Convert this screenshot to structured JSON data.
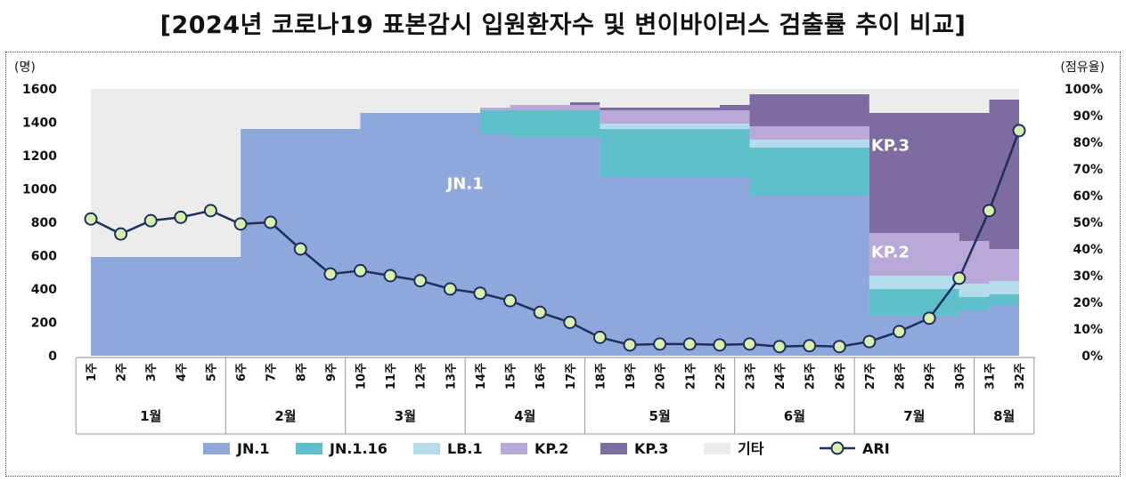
{
  "title": "[2024년 코로나19 표본감시 입원환자수 및 변이바이러스 검출률 추이 비교]",
  "chart_data": {
    "type": "area",
    "left_axis_unit": "(명)",
    "right_axis_unit": "(점유율)",
    "y_left": {
      "min": 0,
      "max": 1600,
      "ticks": [
        "0",
        "200",
        "400",
        "600",
        "800",
        "1000",
        "1200",
        "1400",
        "1600"
      ]
    },
    "y_right": {
      "min": 0,
      "max": 100,
      "ticks": [
        "0%",
        "10%",
        "20%",
        "30%",
        "40%",
        "50%",
        "60%",
        "70%",
        "80%",
        "90%",
        "100%"
      ]
    },
    "categories": [
      "1주",
      "2주",
      "3주",
      "4주",
      "5주",
      "6주",
      "7주",
      "8주",
      "9주",
      "10주",
      "11주",
      "12주",
      "13주",
      "14주",
      "15주",
      "16주",
      "17주",
      "18주",
      "19주",
      "20주",
      "21주",
      "22주",
      "23주",
      "24주",
      "25주",
      "26주",
      "27주",
      "28주",
      "29주",
      "30주",
      "31주",
      "32주"
    ],
    "months": [
      {
        "label": "1월",
        "from": 1,
        "to": 5
      },
      {
        "label": "2월",
        "from": 6,
        "to": 9
      },
      {
        "label": "3월",
        "from": 10,
        "to": 13
      },
      {
        "label": "4월",
        "from": 14,
        "to": 17
      },
      {
        "label": "5월",
        "from": 18,
        "to": 22
      },
      {
        "label": "6월",
        "from": 23,
        "to": 26
      },
      {
        "label": "7월",
        "from": 27,
        "to": 30
      },
      {
        "label": "8월",
        "from": 31,
        "to": 32
      }
    ],
    "stack_series": [
      {
        "name": "JN.1",
        "color": "#8fa8dc",
        "values": [
          37,
          37,
          37,
          37,
          37,
          85,
          85,
          85,
          85,
          91,
          91,
          91,
          91,
          83,
          82,
          82,
          82,
          67,
          67,
          67,
          67,
          67,
          60,
          60,
          60,
          60,
          15,
          15,
          15,
          17,
          19,
          19
        ]
      },
      {
        "name": "JN.1.16",
        "color": "#5fc0cc",
        "values": [
          0,
          0,
          0,
          0,
          0,
          0,
          0,
          0,
          0,
          0,
          0,
          0,
          0,
          9,
          10,
          10,
          10,
          18,
          18,
          18,
          18,
          18,
          18,
          18,
          18,
          18,
          10,
          10,
          10,
          5,
          4,
          4
        ]
      },
      {
        "name": "LB.1",
        "color": "#b4dcea",
        "values": [
          0,
          0,
          0,
          0,
          0,
          0,
          0,
          0,
          0,
          0,
          0,
          0,
          0,
          0,
          0,
          0,
          0,
          2,
          2,
          2,
          2,
          2,
          3,
          3,
          3,
          3,
          5,
          5,
          5,
          5,
          5,
          5
        ]
      },
      {
        "name": "KP.2",
        "color": "#b9a9db",
        "values": [
          0,
          0,
          0,
          0,
          0,
          0,
          0,
          0,
          0,
          0,
          0,
          0,
          0,
          1,
          2,
          2,
          2,
          5,
          5,
          5,
          5,
          5,
          5,
          5,
          5,
          5,
          16,
          16,
          16,
          16,
          12,
          12
        ]
      },
      {
        "name": "KP.3",
        "color": "#7c6c9f",
        "values": [
          0,
          0,
          0,
          0,
          0,
          0,
          0,
          0,
          0,
          0,
          0,
          0,
          0,
          0,
          0,
          0,
          1,
          1,
          1,
          1,
          1,
          2,
          12,
          12,
          12,
          12,
          45,
          45,
          45,
          48,
          56,
          56
        ]
      },
      {
        "name": "기타",
        "color": "#ececec",
        "values": [
          63,
          63,
          63,
          63,
          63,
          15,
          15,
          15,
          15,
          9,
          9,
          9,
          9,
          7,
          6,
          6,
          5,
          7,
          7,
          7,
          7,
          6,
          2,
          2,
          2,
          2,
          9,
          9,
          9,
          9,
          4,
          4
        ]
      }
    ],
    "line_series": {
      "name": "ARI",
      "axis": "left",
      "line_color": "#1f2f5c",
      "marker_color": "#d8efad",
      "values": [
        820,
        730,
        810,
        830,
        870,
        790,
        800,
        640,
        490,
        510,
        480,
        450,
        400,
        375,
        330,
        260,
        200,
        110,
        65,
        70,
        70,
        65,
        70,
        55,
        60,
        55,
        85,
        145,
        225,
        465,
        870,
        1350
      ]
    },
    "area_labels": [
      {
        "text": "JN.1",
        "x": 13.5,
        "y": 1000
      },
      {
        "text": "KP.3",
        "x": 27.7,
        "y": 1230
      },
      {
        "text": "KP.2",
        "x": 27.7,
        "y": 590
      }
    ],
    "legend": {
      "items": [
        {
          "name": "JN.1",
          "type": "box",
          "color": "#8fa8dc"
        },
        {
          "name": "JN.1.16",
          "type": "box",
          "color": "#5fc0cc"
        },
        {
          "name": "LB.1",
          "type": "box",
          "color": "#b4dcea"
        },
        {
          "name": "KP.2",
          "type": "box",
          "color": "#b9a9db"
        },
        {
          "name": "KP.3",
          "type": "box",
          "color": "#7c6c9f"
        },
        {
          "name": "기타",
          "type": "box",
          "color": "#ececec"
        },
        {
          "name": "ARI",
          "type": "line",
          "color": "#1f2f5c"
        }
      ]
    }
  }
}
